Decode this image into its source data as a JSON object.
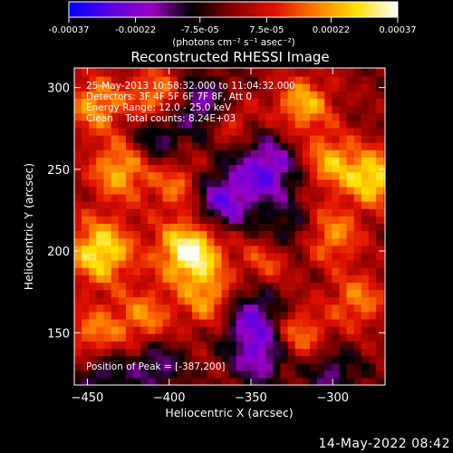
{
  "chart_data": {
    "type": "heatmap",
    "title": "Reconstructed RHESSI Image",
    "xlabel": "Heliocentric X (arcsec)",
    "ylabel": "Heliocentric Y (arcsec)",
    "xlim": [
      -458,
      -268
    ],
    "ylim": [
      118,
      312
    ],
    "x_ticks": [
      -450,
      -400,
      -350,
      -300
    ],
    "y_ticks": [
      150,
      200,
      250,
      300
    ],
    "colorbar": {
      "unit_label": "(photons cm⁻² s⁻¹ asec⁻²)",
      "range": [
        -0.00037,
        0.00037
      ],
      "tick_values": [
        -0.00037,
        -0.00022,
        -7.5e-05,
        7.5e-05,
        0.00022,
        0.00037
      ],
      "tick_labels": [
        "-0.00037",
        "-0.00022",
        "-7.5e-05",
        "7.5e-05",
        "0.00022",
        "0.00037"
      ],
      "colormap": [
        "#0000ff",
        "#5a00e8",
        "#9a00c0",
        "#000000",
        "#8a0000",
        "#e01000",
        "#ff7a00",
        "#ffe000",
        "#ffffff"
      ]
    },
    "annotations": {
      "line1": "25-May-2013 10:58:32.000 to 11:04:32.000",
      "line2": "Detectors: 3F 4F 5F 6F 7F 8F, Att 0",
      "line3": "Energy Range: 12.0 - 25.0 keV",
      "line4": "Clean    Total counts: 8.24E+03",
      "peak": "Position of Peak = [-387,200]"
    },
    "peak": {
      "x": -387,
      "y": 200
    },
    "sources": [
      {
        "x": -387,
        "y": 200,
        "amp": 1.0,
        "w": 14
      },
      {
        "x": -442,
        "y": 200,
        "amp": 0.85,
        "w": 14
      },
      {
        "x": -430,
        "y": 250,
        "amp": 0.65,
        "w": 13
      },
      {
        "x": -445,
        "y": 290,
        "amp": 0.6,
        "w": 12
      },
      {
        "x": -408,
        "y": 295,
        "amp": 0.55,
        "w": 12
      },
      {
        "x": -375,
        "y": 170,
        "amp": 0.55,
        "w": 12
      },
      {
        "x": -415,
        "y": 160,
        "amp": 0.5,
        "w": 12
      },
      {
        "x": -445,
        "y": 150,
        "amp": 0.5,
        "w": 12
      },
      {
        "x": -395,
        "y": 240,
        "amp": 0.45,
        "w": 11
      },
      {
        "x": -318,
        "y": 290,
        "amp": 0.65,
        "w": 12
      },
      {
        "x": -302,
        "y": 255,
        "amp": 0.6,
        "w": 12
      },
      {
        "x": -275,
        "y": 245,
        "amp": 0.8,
        "w": 12
      },
      {
        "x": -300,
        "y": 210,
        "amp": 0.55,
        "w": 12
      },
      {
        "x": -285,
        "y": 170,
        "amp": 0.5,
        "w": 12
      },
      {
        "x": -320,
        "y": 150,
        "amp": 0.5,
        "w": 11
      },
      {
        "x": -340,
        "y": 195,
        "amp": 0.4,
        "w": 11
      },
      {
        "x": -362,
        "y": 280,
        "amp": 0.35,
        "w": 10
      },
      {
        "x": -340,
        "y": 250,
        "amp": -0.7,
        "w": 14
      },
      {
        "x": -368,
        "y": 230,
        "amp": -0.65,
        "w": 13
      },
      {
        "x": -380,
        "y": 290,
        "amp": -0.55,
        "w": 12
      },
      {
        "x": -408,
        "y": 270,
        "amp": -0.45,
        "w": 11
      },
      {
        "x": -350,
        "y": 160,
        "amp": -0.6,
        "w": 13
      },
      {
        "x": -345,
        "y": 135,
        "amp": -0.55,
        "w": 12
      },
      {
        "x": -408,
        "y": 130,
        "amp": -0.45,
        "w": 11
      },
      {
        "x": -440,
        "y": 125,
        "amp": -0.4,
        "w": 11
      },
      {
        "x": -328,
        "y": 212,
        "amp": -0.35,
        "w": 11
      },
      {
        "x": -300,
        "y": 125,
        "amp": -0.4,
        "w": 11
      }
    ]
  },
  "footer": {
    "date_stamp": "14-May-2022 08:42"
  }
}
